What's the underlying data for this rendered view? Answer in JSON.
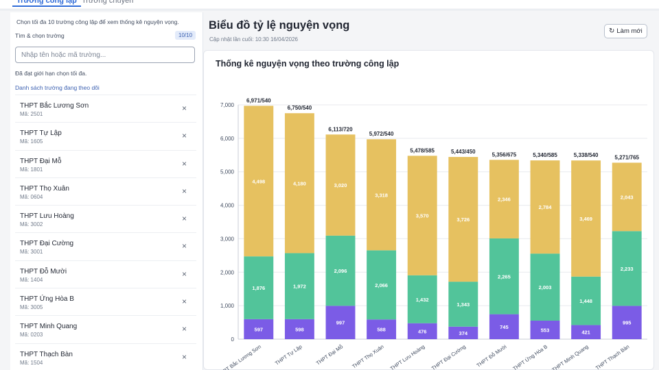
{
  "tabs": [
    {
      "label": "Trường công lập",
      "active": true
    },
    {
      "label": "Trường chuyên",
      "active": false
    }
  ],
  "sidebar": {
    "hint": "Chọn tối đa 10 trường công lập để xem thống kê nguyện vọng.",
    "search_label": "Tìm & chọn trường",
    "selected_count": "10/10",
    "search_placeholder": "Nhập tên hoặc mã trường...",
    "limit_message": "Đã đạt giới hạn chọn tối đa.",
    "tracked_title": "Danh sách trường đang theo dõi",
    "schools": [
      {
        "name": "THPT Bắc Lương Sơn",
        "code": "Mã: 2501"
      },
      {
        "name": "THPT Tự Lập",
        "code": "Mã: 1605"
      },
      {
        "name": "THPT Đại Mỗ",
        "code": "Mã: 1801"
      },
      {
        "name": "THPT Thọ Xuân",
        "code": "Mã: 0604"
      },
      {
        "name": "THPT Lưu Hoàng",
        "code": "Mã: 3002"
      },
      {
        "name": "THPT Đại Cường",
        "code": "Mã: 3001"
      },
      {
        "name": "THPT Đỗ Mười",
        "code": "Mã: 1404"
      },
      {
        "name": "THPT Ứng Hòa B",
        "code": "Mã: 3005"
      },
      {
        "name": "THPT Minh Quang",
        "code": "Mã: 0203"
      },
      {
        "name": "THPT Thạch Bàn",
        "code": "Mã: 1504"
      }
    ],
    "remove_glyph": "×"
  },
  "main": {
    "title": "Biểu đồ tỷ lệ nguyện vọng",
    "updated": "Cập nhật lần cuối: 10:30 16/04/2026",
    "refresh_label": "Làm mới",
    "refresh_icon": "refresh-icon",
    "chart_title": "Thống kê nguyện vọng theo trường công lập"
  },
  "chart_data": {
    "type": "bar",
    "stacked": true,
    "title": "Thống kê nguyện vọng theo trường công lập",
    "ylim": [
      0,
      7000
    ],
    "yticks": [
      "0",
      "1,000",
      "2,000",
      "3,000",
      "4,000",
      "5,000",
      "6,000",
      "7,000"
    ],
    "grid": true,
    "categories": [
      "THPT Bắc Lương Sơn",
      "THPT Tự Lập",
      "THPT Đại Mỗ",
      "THPT Thọ Xuân",
      "THPT Lưu Hoàng",
      "THPT Đại Cường",
      "THPT Đỗ Mười",
      "THPT Ứng Hòa B",
      "THPT Minh Quang",
      "THPT Thạch Bàn"
    ],
    "totals": [
      "6,971/540",
      "6,750/540",
      "6,113/720",
      "5,972/540",
      "5,478/585",
      "5,443/450",
      "5,356/675",
      "5,340/585",
      "5,338/540",
      "5,271/765"
    ],
    "series": [
      {
        "color": "#7b5ce6",
        "values": [
          597,
          598,
          997,
          588,
          476,
          374,
          745,
          553,
          421,
          995
        ],
        "labels": [
          "597",
          "598",
          "997",
          "588",
          "476",
          "374",
          "745",
          "553",
          "421",
          "995"
        ]
      },
      {
        "color": "#52c49a",
        "values": [
          1876,
          1972,
          2096,
          2066,
          1432,
          1343,
          2265,
          2003,
          1448,
          2233
        ],
        "labels": [
          "1,876",
          "1,972",
          "2,096",
          "2,066",
          "1,432",
          "1,343",
          "2,265",
          "2,003",
          "1,448",
          "2,233"
        ]
      },
      {
        "color": "#e6c160",
        "values": [
          4498,
          4180,
          3020,
          3318,
          3570,
          3726,
          2346,
          2784,
          3469,
          2043
        ],
        "labels": [
          "4,498",
          "4,180",
          "3,020",
          "3,318",
          "3,570",
          "3,726",
          "2,346",
          "2,784",
          "3,469",
          "2,043"
        ]
      }
    ]
  }
}
